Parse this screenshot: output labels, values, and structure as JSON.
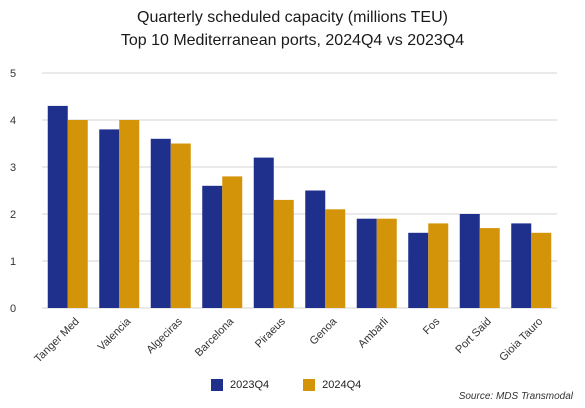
{
  "chart_data": {
    "type": "bar",
    "title": "Quarterly scheduled capacity (millions TEU)",
    "subtitle": "Top 10 Mediterranean ports, 2024Q4 vs 2023Q4",
    "categories": [
      "Tanger Med",
      "Valencia",
      "Algeciras",
      "Barcelona",
      "Piraeus",
      "Genoa",
      "Ambarli",
      "Fos",
      "Port Said",
      "Gioia Tauro"
    ],
    "series": [
      {
        "name": "2023Q4",
        "color": "#1f2f8c",
        "values": [
          4.3,
          3.8,
          3.6,
          2.6,
          3.2,
          2.5,
          1.9,
          1.6,
          2.0,
          1.8
        ]
      },
      {
        "name": "2024Q4",
        "color": "#d4940a",
        "values": [
          4.0,
          4.0,
          3.5,
          2.8,
          2.3,
          2.1,
          1.9,
          1.8,
          1.7,
          1.6
        ]
      }
    ],
    "ylim": [
      0,
      5
    ],
    "yticks": [
      0,
      1,
      2,
      3,
      4,
      5
    ],
    "grid": true,
    "legend_position": "bottom",
    "source": "Source: MDS Transmodal"
  }
}
